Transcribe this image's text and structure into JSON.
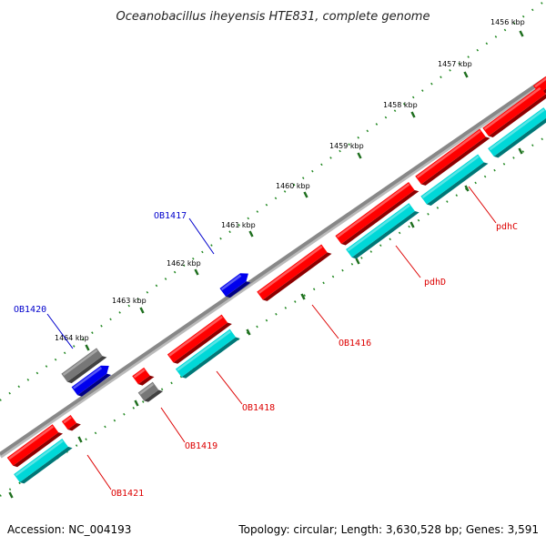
{
  "title": "Oceanobacillus iheyensis HTE831, complete genome",
  "footer": {
    "accession": "Accession: NC_004193",
    "topology": "Topology: circular; Length: 3,630,528 bp; Genes: 3,591"
  },
  "kbp_ticks": [
    {
      "label": "1456 kbp"
    },
    {
      "label": "1457 kbp"
    },
    {
      "label": "1458 kbp"
    },
    {
      "label": "1459 kbp"
    },
    {
      "label": "1460 kbp"
    },
    {
      "label": "1461 kbp"
    },
    {
      "label": "1462 kbp"
    },
    {
      "label": "1463 kbp"
    },
    {
      "label": "1464 kbp"
    }
  ],
  "gene_labels": [
    {
      "id": "pdhC",
      "text": "pdhC",
      "color": "#dd0000"
    },
    {
      "id": "pdhD",
      "text": "pdhD",
      "color": "#dd0000"
    },
    {
      "id": "OB1416",
      "text": "OB1416",
      "color": "#dd0000"
    },
    {
      "id": "OB1417",
      "text": "OB1417",
      "color": "#0000cc"
    },
    {
      "id": "OB1418",
      "text": "OB1418",
      "color": "#dd0000"
    },
    {
      "id": "OB1419",
      "text": "OB1419",
      "color": "#dd0000"
    },
    {
      "id": "OB1420",
      "text": "OB1420",
      "color": "#0000cc"
    },
    {
      "id": "OB1421",
      "text": "OB1421",
      "color": "#dd0000"
    }
  ],
  "colors": {
    "forward_gene": "#ff0000",
    "reverse_gene": "#0000ee",
    "cds_feature": "#00d8d8",
    "other_feature": "#777777",
    "backbone": "#888888",
    "tick_dots": "#228822"
  }
}
